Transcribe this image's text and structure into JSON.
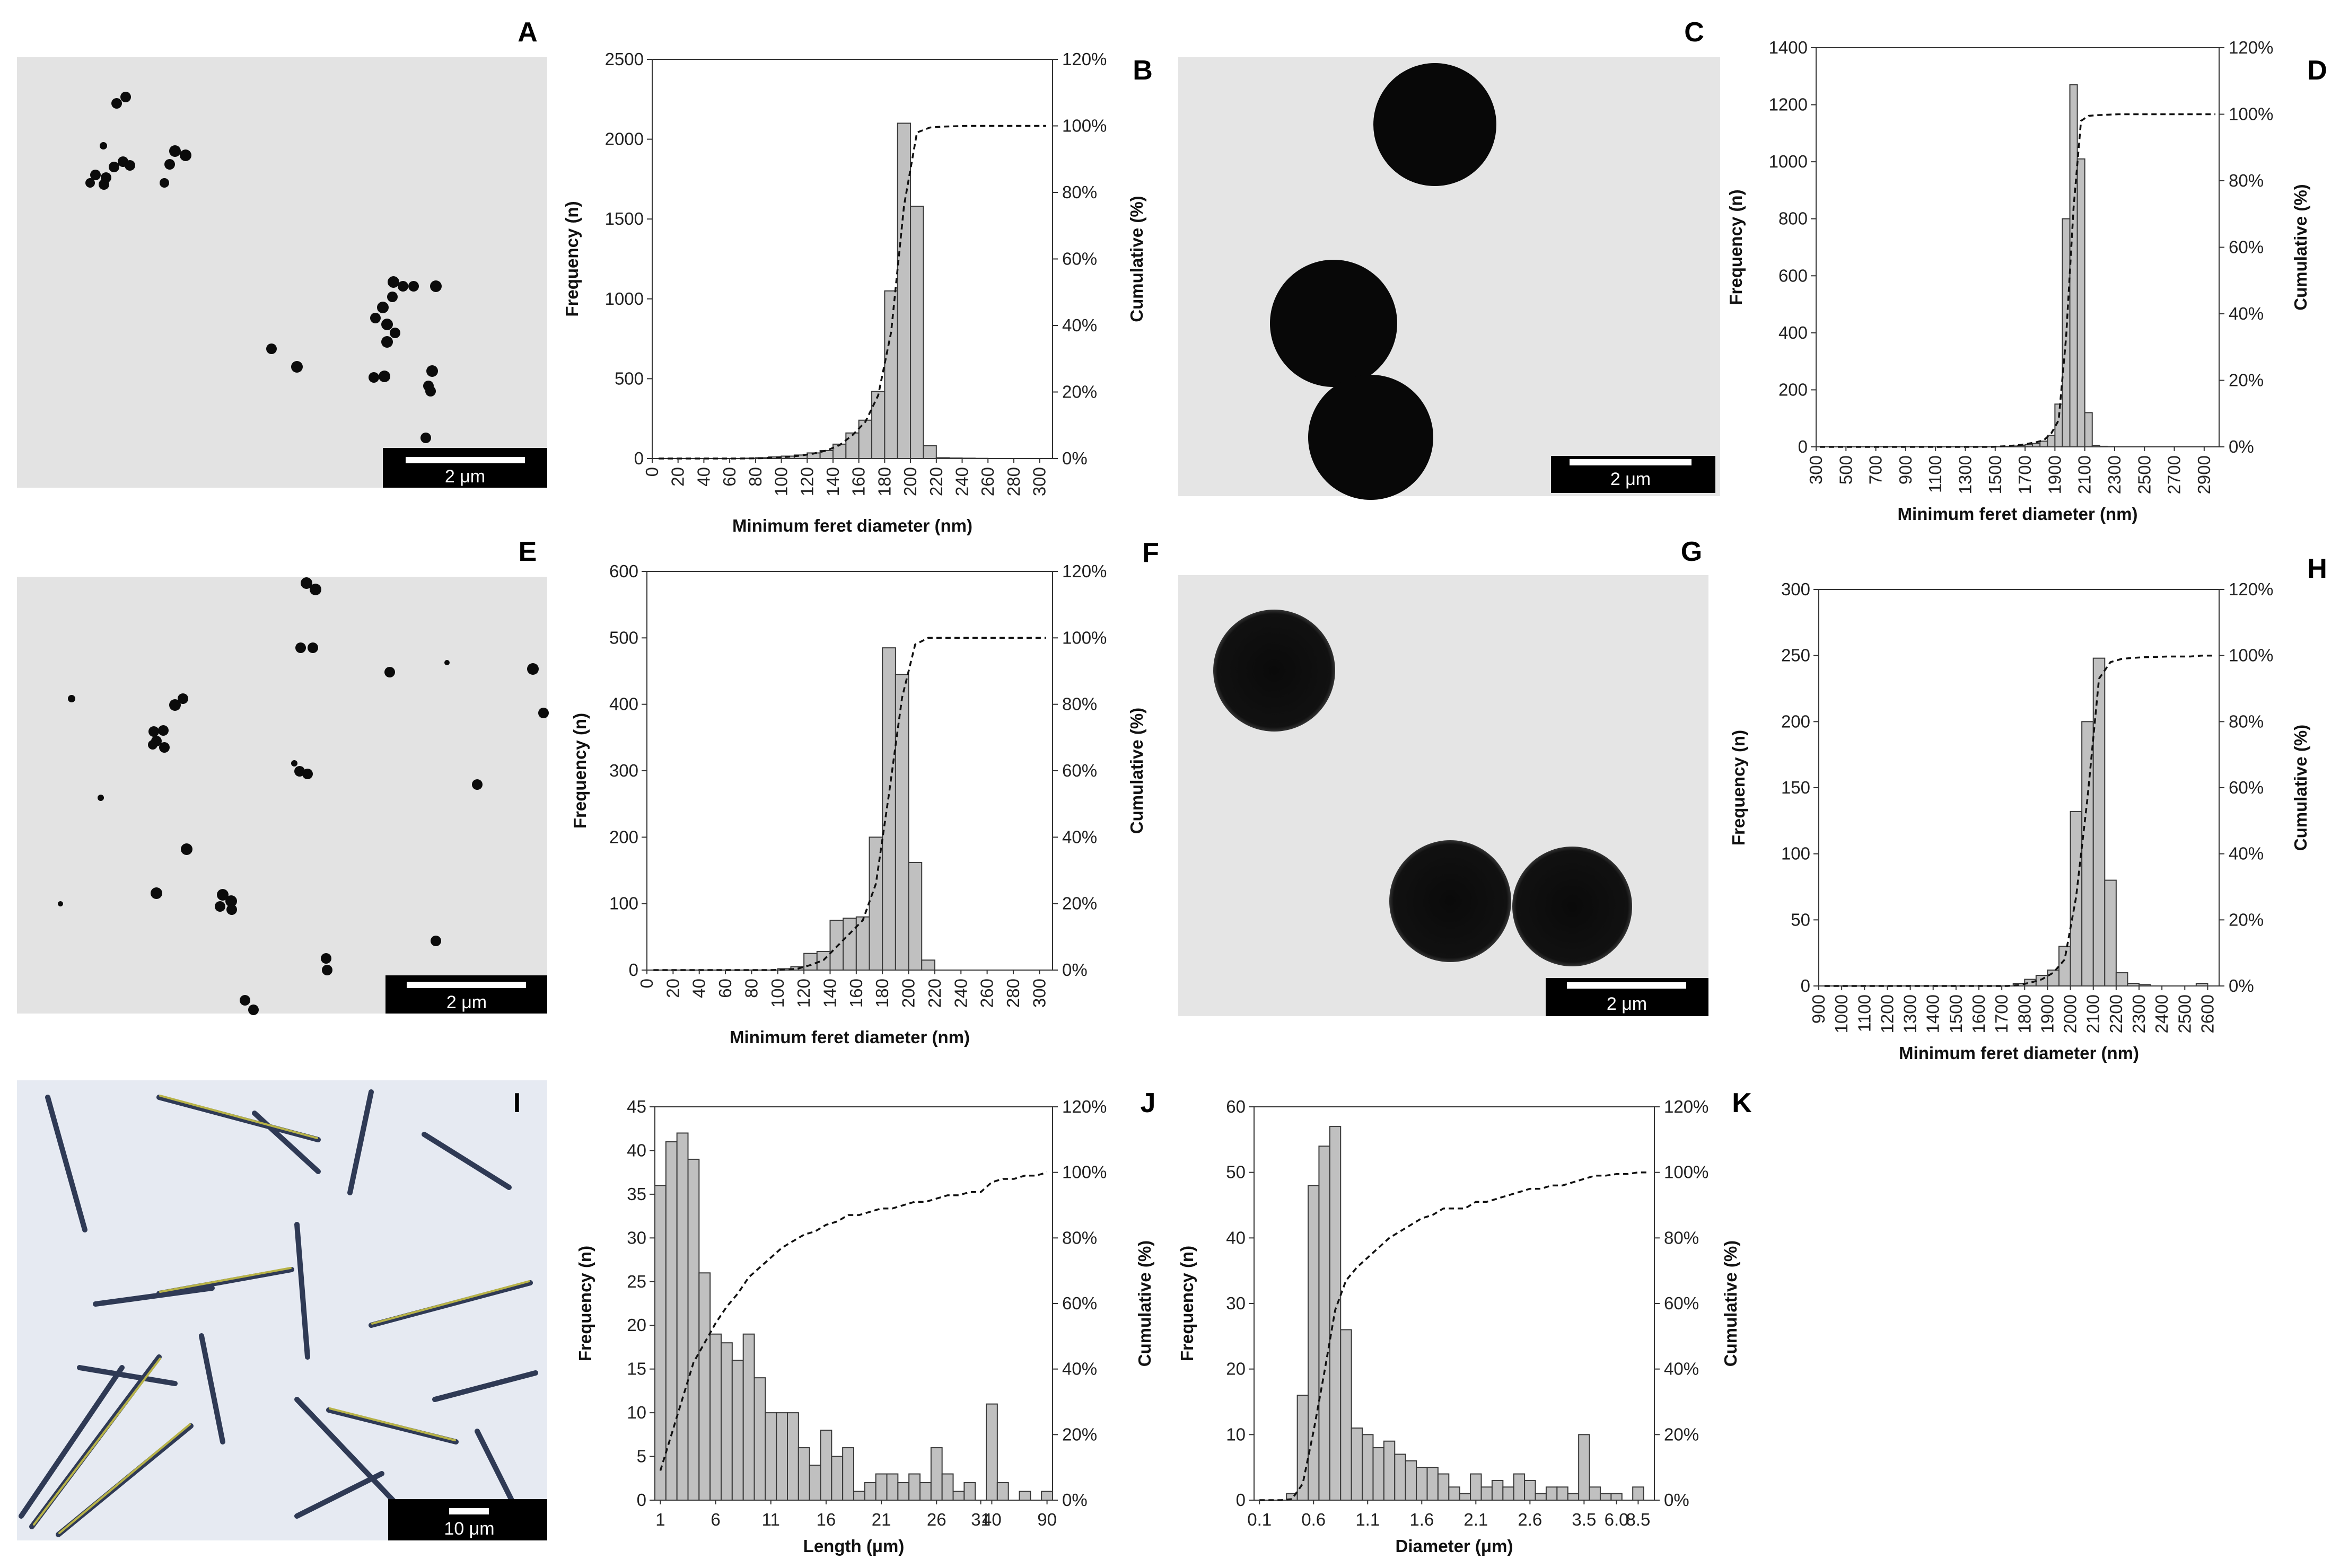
{
  "panels": {
    "A": {
      "letter": "A",
      "scale_label": "2 μm"
    },
    "C": {
      "letter": "C",
      "scale_label": "2 μm"
    },
    "E": {
      "letter": "E",
      "scale_label": "2 μm"
    },
    "G": {
      "letter": "G",
      "scale_label": "2 μm"
    },
    "I": {
      "letter": "I",
      "scale_label": "10 μm"
    }
  },
  "chart_data": [
    {
      "id": "B",
      "letter": "B",
      "type": "bar",
      "xlabel": "Minimum feret diameter (nm)",
      "ylabel": "Frequency (n)",
      "y2label": "Cumulative (%)",
      "categories": [
        "0",
        "10",
        "20",
        "30",
        "40",
        "50",
        "60",
        "70",
        "80",
        "90",
        "100",
        "110",
        "120",
        "130",
        "140",
        "150",
        "160",
        "170",
        "180",
        "190",
        "200",
        "210",
        "220",
        "230",
        "240",
        "250",
        "260",
        "270",
        "280",
        "290",
        "300"
      ],
      "tick_labels": [
        "0",
        "20",
        "40",
        "60",
        "80",
        "100",
        "120",
        "140",
        "160",
        "180",
        "200",
        "220",
        "240",
        "260",
        "280",
        "300"
      ],
      "values": [
        0,
        0,
        0,
        0,
        0,
        0,
        0,
        2,
        5,
        10,
        15,
        22,
        35,
        50,
        90,
        160,
        240,
        420,
        1050,
        2100,
        1580,
        80,
        5,
        3,
        2,
        1,
        0,
        0,
        0,
        0,
        0
      ],
      "ylim": [
        0,
        2500
      ],
      "yticks": [
        0,
        500,
        1000,
        1500,
        2000,
        2500
      ],
      "y2ticks": [
        "0%",
        "20%",
        "40%",
        "60%",
        "80%",
        "100%",
        "120%"
      ],
      "cumulative": [
        0,
        0,
        0,
        0,
        0,
        0,
        0,
        0.03,
        0.1,
        0.3,
        0.5,
        0.9,
        1.5,
        2.4,
        4,
        7,
        11,
        19,
        38,
        76,
        98,
        99.5,
        99.8,
        99.9,
        100,
        100,
        100,
        100,
        100,
        100,
        100
      ]
    },
    {
      "id": "D",
      "letter": "D",
      "type": "bar",
      "xlabel": "Minimum feret diameter (nm)",
      "ylabel": "Frequency (n)",
      "y2label": "Cumulative (%)",
      "categories": [
        "300",
        "350",
        "400",
        "450",
        "500",
        "550",
        "600",
        "650",
        "700",
        "750",
        "800",
        "850",
        "900",
        "950",
        "1000",
        "1050",
        "1100",
        "1150",
        "1200",
        "1250",
        "1300",
        "1350",
        "1400",
        "1450",
        "1500",
        "1550",
        "1600",
        "1650",
        "1700",
        "1750",
        "1800",
        "1850",
        "1900",
        "1950",
        "2000",
        "2050",
        "2100",
        "2150",
        "2200",
        "2250",
        "2300",
        "2350",
        "2400",
        "2450",
        "2500",
        "2550",
        "2600",
        "2650",
        "2700",
        "2750",
        "2800",
        "2850",
        "2900",
        "2950"
      ],
      "tick_labels": [
        "300",
        "500",
        "700",
        "900",
        "1100",
        "1300",
        "1500",
        "1700",
        "1900",
        "2100",
        "2300",
        "2500",
        "2700",
        "2900"
      ],
      "values": [
        0,
        0,
        0,
        0,
        0,
        0,
        0,
        0,
        0,
        0,
        0,
        0,
        0,
        0,
        0,
        0,
        0,
        0,
        0,
        0,
        0,
        0,
        0,
        0,
        1,
        2,
        3,
        5,
        8,
        12,
        20,
        40,
        150,
        800,
        1270,
        1010,
        120,
        5,
        2,
        1,
        0,
        0,
        0,
        0,
        0,
        0,
        0,
        0,
        0,
        0,
        0,
        0,
        0,
        0
      ],
      "ylim": [
        0,
        1400
      ],
      "yticks": [
        0,
        200,
        400,
        600,
        800,
        1000,
        1200,
        1400
      ],
      "y2ticks": [
        "0%",
        "20%",
        "40%",
        "60%",
        "80%",
        "100%",
        "120%"
      ],
      "cumulative": [
        0,
        0,
        0,
        0,
        0,
        0,
        0,
        0,
        0,
        0,
        0,
        0,
        0,
        0,
        0,
        0,
        0,
        0,
        0,
        0,
        0,
        0,
        0,
        0,
        0.1,
        0.2,
        0.4,
        0.6,
        1,
        1.4,
        2,
        4,
        8,
        33,
        72,
        98,
        99.5,
        99.7,
        99.8,
        99.9,
        100,
        100,
        100,
        100,
        100,
        100,
        100,
        100,
        100,
        100,
        100,
        100,
        100,
        100
      ]
    },
    {
      "id": "F",
      "letter": "F",
      "type": "bar",
      "xlabel": "Minimum feret diameter (nm)",
      "ylabel": "Frequency (n)",
      "y2label": "Cumulative (%)",
      "categories": [
        "0",
        "10",
        "20",
        "30",
        "40",
        "50",
        "60",
        "70",
        "80",
        "90",
        "100",
        "110",
        "120",
        "130",
        "140",
        "150",
        "160",
        "170",
        "180",
        "190",
        "200",
        "210",
        "220",
        "230",
        "240",
        "250",
        "260",
        "270",
        "280",
        "290",
        "300"
      ],
      "tick_labels": [
        "0",
        "20",
        "40",
        "60",
        "80",
        "100",
        "120",
        "140",
        "160",
        "180",
        "200",
        "220",
        "240",
        "260",
        "280",
        "300"
      ],
      "values": [
        0,
        0,
        0,
        0,
        0,
        0,
        0,
        0,
        0,
        0,
        2,
        5,
        25,
        28,
        75,
        78,
        80,
        200,
        485,
        445,
        162,
        15,
        0,
        0,
        0,
        0,
        0,
        0,
        0,
        0,
        0
      ],
      "ylim": [
        0,
        600
      ],
      "yticks": [
        0,
        100,
        200,
        300,
        400,
        500,
        600
      ],
      "y2ticks": [
        "0%",
        "20%",
        "40%",
        "60%",
        "80%",
        "100%",
        "120%"
      ],
      "cumulative": [
        0,
        0,
        0,
        0,
        0,
        0,
        0,
        0,
        0,
        0,
        0.1,
        0.4,
        1.5,
        3,
        7,
        11,
        15,
        26,
        53,
        82,
        98,
        100,
        100,
        100,
        100,
        100,
        100,
        100,
        100,
        100,
        100
      ]
    },
    {
      "id": "H",
      "letter": "H",
      "type": "bar",
      "xlabel": "Minimum feret diameter (nm)",
      "ylabel": "Frequency (n)",
      "y2label": "Cumulative (%)",
      "categories": [
        "900",
        "950",
        "1000",
        "1050",
        "1100",
        "1150",
        "1200",
        "1250",
        "1300",
        "1350",
        "1400",
        "1450",
        "1500",
        "1550",
        "1600",
        "1650",
        "1700",
        "1750",
        "1800",
        "1850",
        "1900",
        "1950",
        "2000",
        "2050",
        "2100",
        "2150",
        "2200",
        "2250",
        "2300",
        "2350",
        "2400",
        "2450",
        "2500",
        "2550",
        "2600"
      ],
      "tick_labels": [
        "900",
        "1000",
        "1100",
        "1200",
        "1300",
        "1400",
        "1500",
        "1600",
        "1700",
        "1800",
        "1900",
        "2000",
        "2100",
        "2200",
        "2300",
        "2400",
        "2500",
        "2600"
      ],
      "values": [
        0,
        0,
        0,
        0,
        0,
        0,
        0,
        0,
        0,
        0,
        0,
        0,
        0,
        0,
        0,
        0,
        0,
        2,
        5,
        8,
        12,
        30,
        132,
        200,
        248,
        80,
        10,
        2,
        1,
        0,
        0,
        0,
        0,
        2,
        0
      ],
      "ylim": [
        0,
        300
      ],
      "yticks": [
        0,
        50,
        100,
        150,
        200,
        250,
        300
      ],
      "y2ticks": [
        "0%",
        "20%",
        "40%",
        "60%",
        "80%",
        "100%",
        "120%"
      ],
      "cumulative": [
        0,
        0,
        0,
        0,
        0,
        0,
        0,
        0,
        0,
        0,
        0,
        0,
        0,
        0,
        0,
        0,
        0,
        0.3,
        1,
        2,
        4,
        8,
        27,
        57,
        93,
        98,
        99,
        99.3,
        99.5,
        99.6,
        99.7,
        99.7,
        99.7,
        100,
        100
      ]
    },
    {
      "id": "J",
      "letter": "J",
      "type": "bar",
      "xlabel": "Length (μm)",
      "ylabel": "Frequency (n)",
      "y2label": "Cumulative (%)",
      "categories": [
        "1",
        "2",
        "3",
        "4",
        "5",
        "6",
        "7",
        "8",
        "9",
        "10",
        "11",
        "12",
        "13",
        "14",
        "15",
        "16",
        "17",
        "18",
        "19",
        "20",
        "21",
        "22",
        "23",
        "24",
        "25",
        "26",
        "27",
        "28",
        "29",
        "30",
        "40",
        "50",
        "60",
        "70",
        "80",
        "90"
      ],
      "tick_labels": [
        "1",
        "6",
        "11",
        "16",
        "21",
        "26",
        "31",
        "40",
        "90"
      ],
      "tick_indices": [
        0,
        5,
        10,
        15,
        20,
        25,
        29,
        30,
        35
      ],
      "values": [
        36,
        41,
        42,
        39,
        26,
        19,
        18,
        16,
        19,
        14,
        10,
        10,
        10,
        6,
        4,
        8,
        5,
        6,
        1,
        2,
        3,
        3,
        2,
        3,
        2,
        6,
        3,
        1,
        2,
        0,
        11,
        2,
        0,
        1,
        0,
        1
      ],
      "ylim": [
        0,
        45
      ],
      "yticks": [
        0,
        5,
        10,
        15,
        20,
        25,
        30,
        35,
        40,
        45
      ],
      "y2ticks": [
        "0%",
        "20%",
        "40%",
        "60%",
        "80%",
        "100%",
        "120%"
      ],
      "cumulative": [
        9,
        20,
        31,
        42,
        48,
        54,
        59,
        63,
        68,
        71,
        74,
        77,
        79,
        81,
        82,
        84,
        85,
        87,
        87,
        88,
        89,
        89,
        90,
        91,
        91,
        92,
        93,
        93,
        94,
        94,
        97,
        98,
        98,
        99,
        99,
        100
      ]
    },
    {
      "id": "K",
      "letter": "K",
      "type": "bar",
      "xlabel": "Diameter (μm)",
      "ylabel": "Frequency (n)",
      "y2label": "Cumulative (%)",
      "categories": [
        "0.1",
        "0.2",
        "0.3",
        "0.4",
        "0.5",
        "0.6",
        "0.7",
        "0.8",
        "0.9",
        "1.0",
        "1.1",
        "1.2",
        "1.3",
        "1.4",
        "1.5",
        "1.6",
        "1.7",
        "1.8",
        "1.9",
        "2.0",
        "2.1",
        "2.2",
        "2.3",
        "2.4",
        "2.5",
        "2.6",
        "2.7",
        "2.8",
        "2.9",
        "3.0",
        "3.5",
        "4.0",
        "5.0",
        "6.0",
        "7.0",
        "8.5",
        "9.0"
      ],
      "tick_labels": [
        "0.1",
        "0.6",
        "1.1",
        "1.6",
        "2.1",
        "2.6",
        "3.5",
        "6.0",
        "8.5"
      ],
      "tick_indices": [
        0,
        5,
        10,
        15,
        20,
        25,
        30,
        33,
        35
      ],
      "values": [
        0,
        0,
        0,
        1,
        16,
        48,
        54,
        57,
        26,
        11,
        10,
        8,
        9,
        7,
        6,
        5,
        5,
        4,
        2,
        1,
        4,
        2,
        3,
        2,
        4,
        3,
        1,
        2,
        2,
        1,
        10,
        2,
        1,
        1,
        0,
        2,
        0
      ],
      "ylim": [
        0,
        60
      ],
      "yticks": [
        0,
        10,
        20,
        30,
        40,
        50,
        60
      ],
      "y2ticks": [
        "0%",
        "20%",
        "40%",
        "60%",
        "80%",
        "100%",
        "120%"
      ],
      "cumulative": [
        0,
        0,
        0,
        0.3,
        5,
        21,
        39,
        58,
        67,
        71,
        74,
        77,
        80,
        82,
        84,
        86,
        87,
        89,
        89,
        89,
        91,
        91,
        92,
        93,
        94,
        95,
        95,
        96,
        96,
        97,
        98,
        99,
        99,
        99.5,
        99.5,
        100,
        100
      ]
    }
  ]
}
